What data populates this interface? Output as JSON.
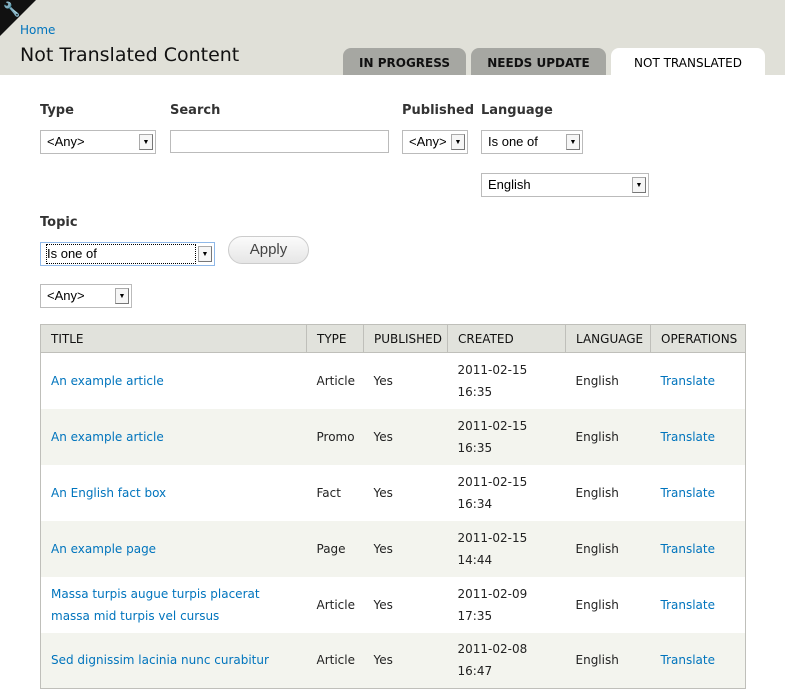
{
  "header": {
    "breadcrumb": "Home",
    "title": "Not Translated Content",
    "shortcut_icon": "wrench-icon"
  },
  "tabs": [
    {
      "label": "IN PROGRESS"
    },
    {
      "label": "NEEDS UPDATE"
    },
    {
      "label": "NOT TRANSLATED",
      "active": true
    }
  ],
  "filters": {
    "type": {
      "label": "Type",
      "value": "<Any>"
    },
    "search": {
      "label": "Search",
      "value": ""
    },
    "published": {
      "label": "Published",
      "value": "<Any>"
    },
    "language": {
      "label": "Language",
      "operator": "Is one of",
      "value": "English"
    },
    "topic": {
      "label": "Topic",
      "operator": "Is one of",
      "value": "<Any>"
    },
    "apply": "Apply"
  },
  "table": {
    "headers": [
      "TITLE",
      "TYPE",
      "PUBLISHED",
      "CREATED",
      "LANGUAGE",
      "OPERATIONS"
    ],
    "rows": [
      {
        "title": "An example article",
        "type": "Article",
        "published": "Yes",
        "date": "2011-02-15",
        "time": "16:35",
        "language": "English",
        "op": "Translate"
      },
      {
        "title": "An example article",
        "type": "Promo",
        "published": "Yes",
        "date": "2011-02-15",
        "time": "16:35",
        "language": "English",
        "op": "Translate"
      },
      {
        "title": "An English fact box",
        "type": "Fact",
        "published": "Yes",
        "date": "2011-02-15",
        "time": "16:34",
        "language": "English",
        "op": "Translate"
      },
      {
        "title": "An example page",
        "type": "Page",
        "published": "Yes",
        "date": "2011-02-15",
        "time": "14:44",
        "language": "English",
        "op": "Translate"
      },
      {
        "title": "Massa turpis augue turpis placerat massa mid turpis vel cursus",
        "type": "Article",
        "published": "Yes",
        "date": "2011-02-09",
        "time": "17:35",
        "language": "English",
        "op": "Translate"
      },
      {
        "title": "Sed dignissim lacinia nunc curabitur",
        "type": "Article",
        "published": "Yes",
        "date": "2011-02-08",
        "time": "16:47",
        "language": "English",
        "op": "Translate"
      }
    ]
  }
}
